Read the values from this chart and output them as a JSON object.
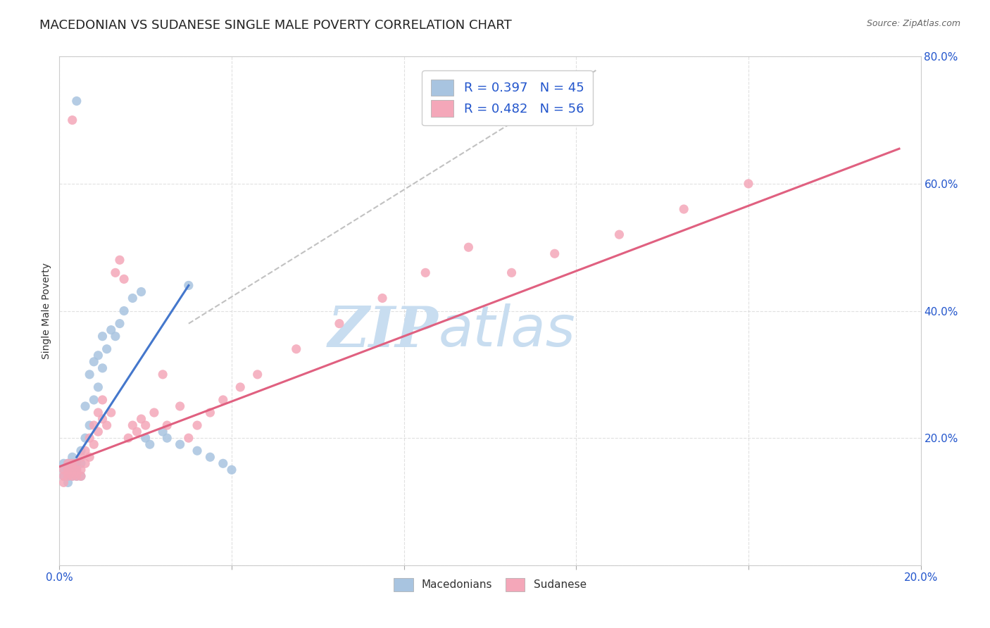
{
  "title": "MACEDONIAN VS SUDANESE SINGLE MALE POVERTY CORRELATION CHART",
  "source": "Source: ZipAtlas.com",
  "ylabel": "Single Male Poverty",
  "xlim": [
    0.0,
    0.2
  ],
  "ylim": [
    0.0,
    0.8
  ],
  "xtick_positions": [
    0.0,
    0.04,
    0.08,
    0.12,
    0.16,
    0.2
  ],
  "xtick_labels": [
    "0.0%",
    "",
    "",
    "",
    "",
    "20.0%"
  ],
  "ytick_positions": [
    0.0,
    0.2,
    0.4,
    0.6,
    0.8
  ],
  "ytick_labels": [
    "",
    "20.0%",
    "40.0%",
    "60.0%",
    "80.0%"
  ],
  "mac_color": "#a8c4e0",
  "sud_color": "#f4a7b9",
  "mac_line_color": "#4477cc",
  "sud_line_color": "#e06080",
  "dash_line_color": "#bbbbbb",
  "mac_R": 0.397,
  "mac_N": 45,
  "sud_R": 0.482,
  "sud_N": 56,
  "mac_line_x": [
    0.004,
    0.03
  ],
  "mac_line_y": [
    0.17,
    0.44
  ],
  "dash_line_x": [
    0.03,
    0.125
  ],
  "dash_line_y": [
    0.38,
    0.78
  ],
  "sud_line_x": [
    0.0,
    0.195
  ],
  "sud_line_y": [
    0.155,
    0.655
  ],
  "mac_scatter_x": [
    0.001,
    0.001,
    0.001,
    0.002,
    0.002,
    0.002,
    0.002,
    0.003,
    0.003,
    0.003,
    0.003,
    0.004,
    0.004,
    0.004,
    0.005,
    0.005,
    0.005,
    0.006,
    0.006,
    0.007,
    0.007,
    0.008,
    0.008,
    0.009,
    0.009,
    0.01,
    0.01,
    0.011,
    0.012,
    0.013,
    0.014,
    0.015,
    0.017,
    0.019,
    0.02,
    0.021,
    0.024,
    0.025,
    0.028,
    0.03,
    0.032,
    0.035,
    0.038,
    0.04,
    0.004
  ],
  "mac_scatter_y": [
    0.14,
    0.15,
    0.16,
    0.13,
    0.14,
    0.15,
    0.16,
    0.14,
    0.15,
    0.16,
    0.17,
    0.14,
    0.15,
    0.16,
    0.14,
    0.16,
    0.18,
    0.2,
    0.25,
    0.22,
    0.3,
    0.26,
    0.32,
    0.28,
    0.33,
    0.31,
    0.36,
    0.34,
    0.37,
    0.36,
    0.38,
    0.4,
    0.42,
    0.43,
    0.2,
    0.19,
    0.21,
    0.2,
    0.19,
    0.44,
    0.18,
    0.17,
    0.16,
    0.15,
    0.73
  ],
  "sud_scatter_x": [
    0.001,
    0.001,
    0.001,
    0.002,
    0.002,
    0.002,
    0.003,
    0.003,
    0.003,
    0.004,
    0.004,
    0.004,
    0.005,
    0.005,
    0.005,
    0.006,
    0.006,
    0.007,
    0.007,
    0.008,
    0.008,
    0.009,
    0.009,
    0.01,
    0.01,
    0.011,
    0.012,
    0.013,
    0.014,
    0.015,
    0.016,
    0.017,
    0.018,
    0.019,
    0.02,
    0.022,
    0.024,
    0.025,
    0.028,
    0.03,
    0.032,
    0.035,
    0.038,
    0.042,
    0.046,
    0.055,
    0.065,
    0.075,
    0.085,
    0.095,
    0.105,
    0.115,
    0.13,
    0.145,
    0.16,
    0.003
  ],
  "sud_scatter_y": [
    0.13,
    0.14,
    0.15,
    0.14,
    0.15,
    0.16,
    0.14,
    0.15,
    0.16,
    0.14,
    0.15,
    0.16,
    0.14,
    0.15,
    0.17,
    0.16,
    0.18,
    0.17,
    0.2,
    0.19,
    0.22,
    0.21,
    0.24,
    0.23,
    0.26,
    0.22,
    0.24,
    0.46,
    0.48,
    0.45,
    0.2,
    0.22,
    0.21,
    0.23,
    0.22,
    0.24,
    0.3,
    0.22,
    0.25,
    0.2,
    0.22,
    0.24,
    0.26,
    0.28,
    0.3,
    0.34,
    0.38,
    0.42,
    0.46,
    0.5,
    0.46,
    0.49,
    0.52,
    0.56,
    0.6,
    0.7
  ],
  "watermark_zip": "ZIP",
  "watermark_atlas": "atlas",
  "watermark_color": "#c8ddf0",
  "grid_color": "#dddddd",
  "background_color": "#ffffff",
  "title_fontsize": 13,
  "axis_label_fontsize": 10,
  "tick_fontsize": 11,
  "legend_color": "#2255cc"
}
